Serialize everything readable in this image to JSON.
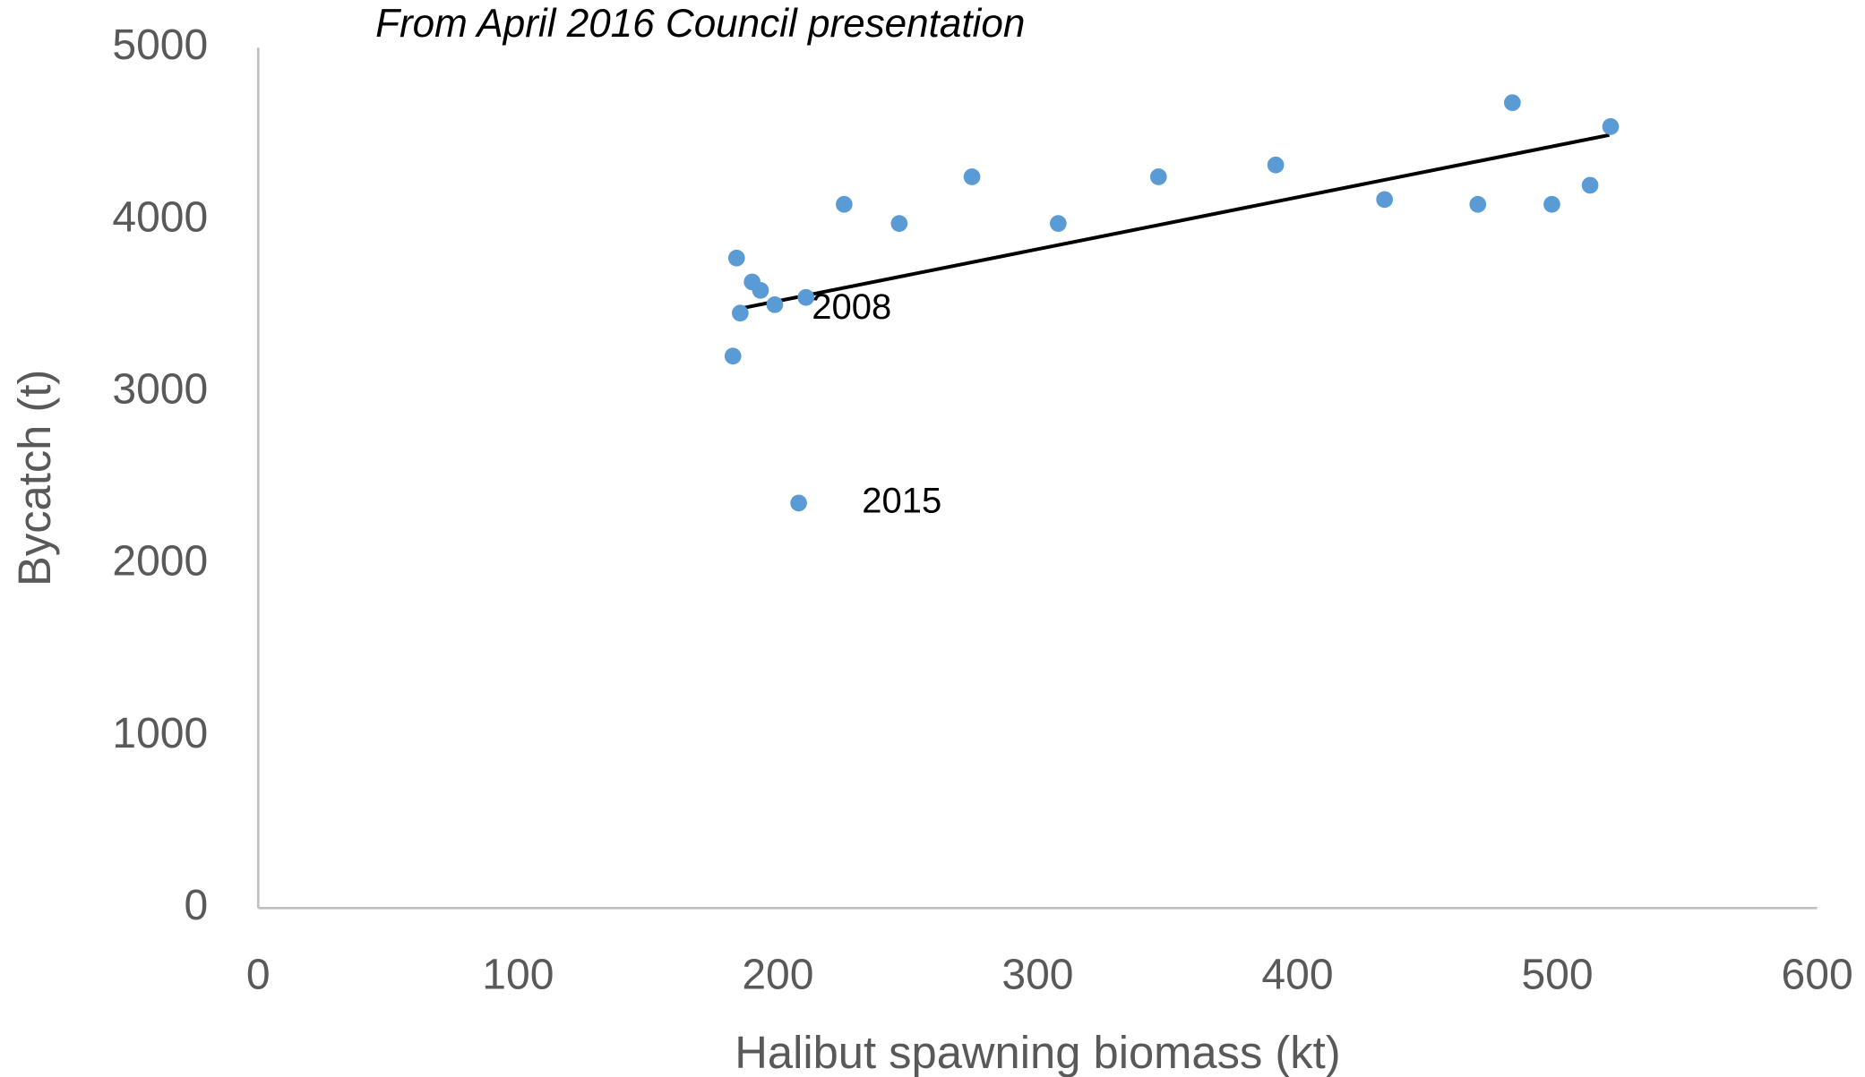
{
  "chart_data": {
    "type": "scatter",
    "title": "From April 2016 Council presentation",
    "x_label": "Halibut spawning  biomass  (kt)",
    "y_label": "Bycatch (t)",
    "series": [
      {
        "name": "Bycatch",
        "color": "#5b9bd5",
        "x": [
          182.7,
          184.1,
          185.5,
          190.1,
          193.3,
          198.8,
          210.8,
          225.5,
          246.7,
          274.7,
          307.9,
          346.5,
          391.6,
          433.5,
          469.4,
          482.7,
          497.9,
          512.6,
          520.5,
          208.0
        ],
        "values": [
          3208,
          3778,
          3458,
          3639,
          3590,
          3507,
          3549,
          4090,
          3979,
          4250,
          3979,
          4250,
          4319,
          4118,
          4090,
          4681,
          4090,
          4201,
          4542,
          2354
        ]
      }
    ],
    "trendline": {
      "color": "#000000",
      "x": [
        186,
        520
      ],
      "values": [
        3486,
        4493
      ]
    },
    "annotations": [
      "2008",
      "2015"
    ],
    "xlim": [
      0,
      600
    ],
    "xticks": [
      0,
      100,
      200,
      300,
      400,
      500,
      600
    ],
    "ylim": [
      0,
      5000
    ],
    "yticks": [
      0,
      1000,
      2000,
      3000,
      4000,
      5000
    ],
    "grid": false
  }
}
